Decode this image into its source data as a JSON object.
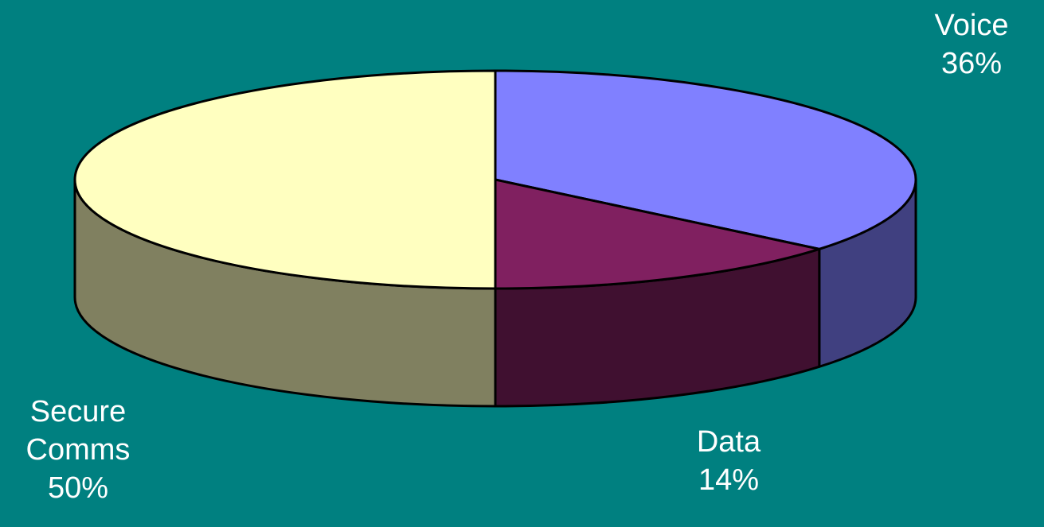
{
  "chart_data": {
    "type": "pie",
    "style": "3d",
    "slices": [
      {
        "label": "Voice",
        "pct_label": "36%",
        "value": 36,
        "color": "#8080ff",
        "side_color": "#404080"
      },
      {
        "label": "Data",
        "pct_label": "14%",
        "value": 14,
        "color": "#802060",
        "side_color": "#401030"
      },
      {
        "label": "Secure Comms",
        "pct_label": "50%",
        "value": 50,
        "color": "#ffffc0",
        "side_color": "#808060"
      }
    ],
    "label_lines": {
      "voice": [
        "Voice"
      ],
      "data": [
        "Data"
      ],
      "secure": [
        "Secure",
        "Comms"
      ]
    }
  },
  "colors": {
    "background": "#008080",
    "outline": "#000000",
    "text": "#ffffff"
  }
}
